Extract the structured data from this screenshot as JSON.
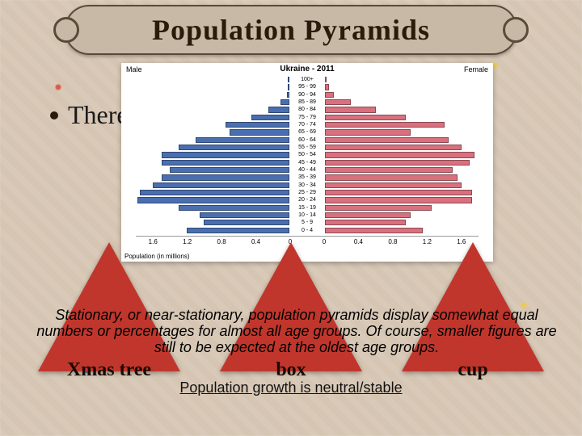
{
  "banner": {
    "title": "Population Pyramids"
  },
  "bullet": {
    "text": "There"
  },
  "chart": {
    "type": "population-pyramid",
    "title": "Ukraine - 2011",
    "male_label": "Male",
    "female_label": "Female",
    "xlabel": "Population (in millions)",
    "male_color": "#4a6fb0",
    "female_color": "#d8707e",
    "background": "#ffffff",
    "title_fontsize": 10,
    "label_fontsize": 9,
    "age_fontsize": 7,
    "tick_fontsize": 8,
    "xlim": 1.8,
    "xticks": [
      "1.6",
      "1.2",
      "0.8",
      "0.4",
      "0",
      "0.4",
      "0.8",
      "1.2",
      "1.6"
    ],
    "age_rows": [
      {
        "label": "100+",
        "m": 0.01,
        "f": 0.02
      },
      {
        "label": "95 - 99",
        "m": 0.02,
        "f": 0.05
      },
      {
        "label": "90 - 94",
        "m": 0.03,
        "f": 0.1
      },
      {
        "label": "85 - 89",
        "m": 0.1,
        "f": 0.3
      },
      {
        "label": "80 - 84",
        "m": 0.25,
        "f": 0.6
      },
      {
        "label": "75 - 79",
        "m": 0.45,
        "f": 0.95
      },
      {
        "label": "70 - 74",
        "m": 0.75,
        "f": 1.4
      },
      {
        "label": "65 - 69",
        "m": 0.7,
        "f": 1.0
      },
      {
        "label": "60 - 64",
        "m": 1.1,
        "f": 1.45
      },
      {
        "label": "55 - 59",
        "m": 1.3,
        "f": 1.6
      },
      {
        "label": "50 - 54",
        "m": 1.5,
        "f": 1.75
      },
      {
        "label": "45 - 49",
        "m": 1.5,
        "f": 1.7
      },
      {
        "label": "40 - 44",
        "m": 1.4,
        "f": 1.5
      },
      {
        "label": "35 - 39",
        "m": 1.5,
        "f": 1.55
      },
      {
        "label": "30 - 34",
        "m": 1.6,
        "f": 1.6
      },
      {
        "label": "25 - 29",
        "m": 1.75,
        "f": 1.72
      },
      {
        "label": "20 - 24",
        "m": 1.78,
        "f": 1.72
      },
      {
        "label": "15 - 19",
        "m": 1.3,
        "f": 1.25
      },
      {
        "label": "10 - 14",
        "m": 1.05,
        "f": 1.0
      },
      {
        "label": "5 - 9",
        "m": 1.0,
        "f": 0.95
      },
      {
        "label": "0 - 4",
        "m": 1.2,
        "f": 1.15
      }
    ]
  },
  "triangles": {
    "items": [
      {
        "label": "Xmas tree",
        "color": "#c1362c"
      },
      {
        "label": "box",
        "color": "#c1362c"
      },
      {
        "label": "cup",
        "color": "#c1362c"
      }
    ],
    "label_fontsize": 24,
    "label_color": "#1a0a00"
  },
  "paragraph": {
    "text": "Stationary, or near-stationary, population pyramids display somewhat equal numbers or percentages for almost all age groups. Of course, smaller figures are still to be expected at the oldest age groups."
  },
  "subtitle": {
    "text": "Population growth is neutral/stable"
  }
}
